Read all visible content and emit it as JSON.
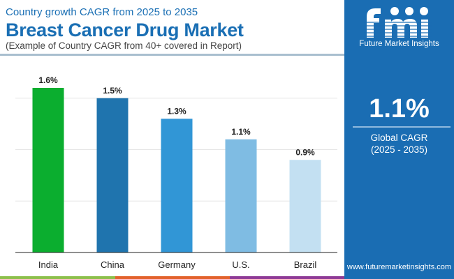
{
  "header": {
    "subtitle": "Country growth CAGR from 2025 to 2035",
    "title": "Breast Cancer Drug Market",
    "note": "(Example of Country CAGR from 40+ covered in Report)"
  },
  "panel": {
    "logo_letters": "fmi",
    "logo_text": "Future Market Insights",
    "global_value": "1.1%",
    "global_label": "Global CAGR",
    "global_period": "(2025 - 2035)",
    "url": "www.futuremarketinsights.com",
    "background": "#1a6db3"
  },
  "chart_data": {
    "type": "bar",
    "categories": [
      "India",
      "China",
      "Germany",
      "U.S.",
      "Brazil"
    ],
    "values": [
      1.6,
      1.5,
      1.3,
      1.1,
      0.9
    ],
    "data_labels": [
      "1.6%",
      "1.5%",
      "1.3%",
      "1.1%",
      "0.9%"
    ],
    "colors": [
      "#0bae2f",
      "#1f74ae",
      "#3196d6",
      "#7fbce3",
      "#c3e0f2"
    ],
    "title": "",
    "xlabel": "",
    "ylabel": "",
    "ylim": [
      0,
      1.8
    ],
    "gridlines": [
      0.5,
      1.0,
      1.5
    ],
    "grid": true,
    "legend": "none"
  },
  "footer_strip_colors": [
    "#8cc04b",
    "#e2622c",
    "#8e3a96"
  ]
}
